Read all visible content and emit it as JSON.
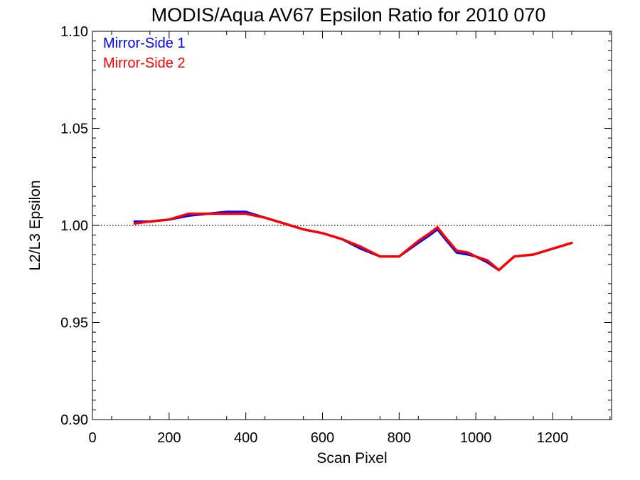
{
  "chart_data": {
    "type": "line",
    "title": "MODIS/Aqua AV67 Epsilon Ratio for 2010 070",
    "xlabel": "Scan Pixel",
    "ylabel": "L2/L3 Epsilon",
    "xlim": [
      0,
      1354
    ],
    "ylim": [
      0.9,
      1.1
    ],
    "x_ticks": [
      0,
      200,
      400,
      600,
      800,
      1000,
      1200
    ],
    "x_tick_labels": [
      "0",
      "200",
      "400",
      "600",
      "800",
      "1000",
      "1200"
    ],
    "y_ticks": [
      0.9,
      0.95,
      1.0,
      1.05,
      1.1
    ],
    "y_tick_labels": [
      "0.90",
      "0.95",
      "1.00",
      "1.05",
      "1.10"
    ],
    "reference_line": {
      "y": 1.0,
      "style": "dotted"
    },
    "grid": false,
    "legend_position": "top-left",
    "x": [
      110,
      150,
      200,
      250,
      300,
      350,
      400,
      450,
      500,
      550,
      600,
      650,
      700,
      750,
      800,
      850,
      880,
      900,
      920,
      950,
      980,
      1000,
      1030,
      1060,
      1100,
      1150,
      1200,
      1250
    ],
    "series": [
      {
        "name": "Mirror-Side 1",
        "color": "#0000ff",
        "values": [
          1.002,
          1.002,
          1.003,
          1.005,
          1.006,
          1.007,
          1.007,
          1.004,
          1.001,
          0.998,
          0.996,
          0.993,
          0.988,
          0.984,
          0.984,
          0.991,
          0.995,
          0.998,
          0.993,
          0.986,
          0.985,
          0.984,
          0.981,
          0.977,
          0.984,
          0.985,
          0.988,
          0.991
        ]
      },
      {
        "name": "Mirror-Side 2",
        "color": "#ff0000",
        "values": [
          1.001,
          1.002,
          1.003,
          1.006,
          1.006,
          1.006,
          1.006,
          1.004,
          1.001,
          0.998,
          0.996,
          0.993,
          0.989,
          0.984,
          0.984,
          0.992,
          0.996,
          0.999,
          0.994,
          0.987,
          0.986,
          0.984,
          0.982,
          0.977,
          0.984,
          0.985,
          0.988,
          0.991
        ]
      }
    ]
  }
}
